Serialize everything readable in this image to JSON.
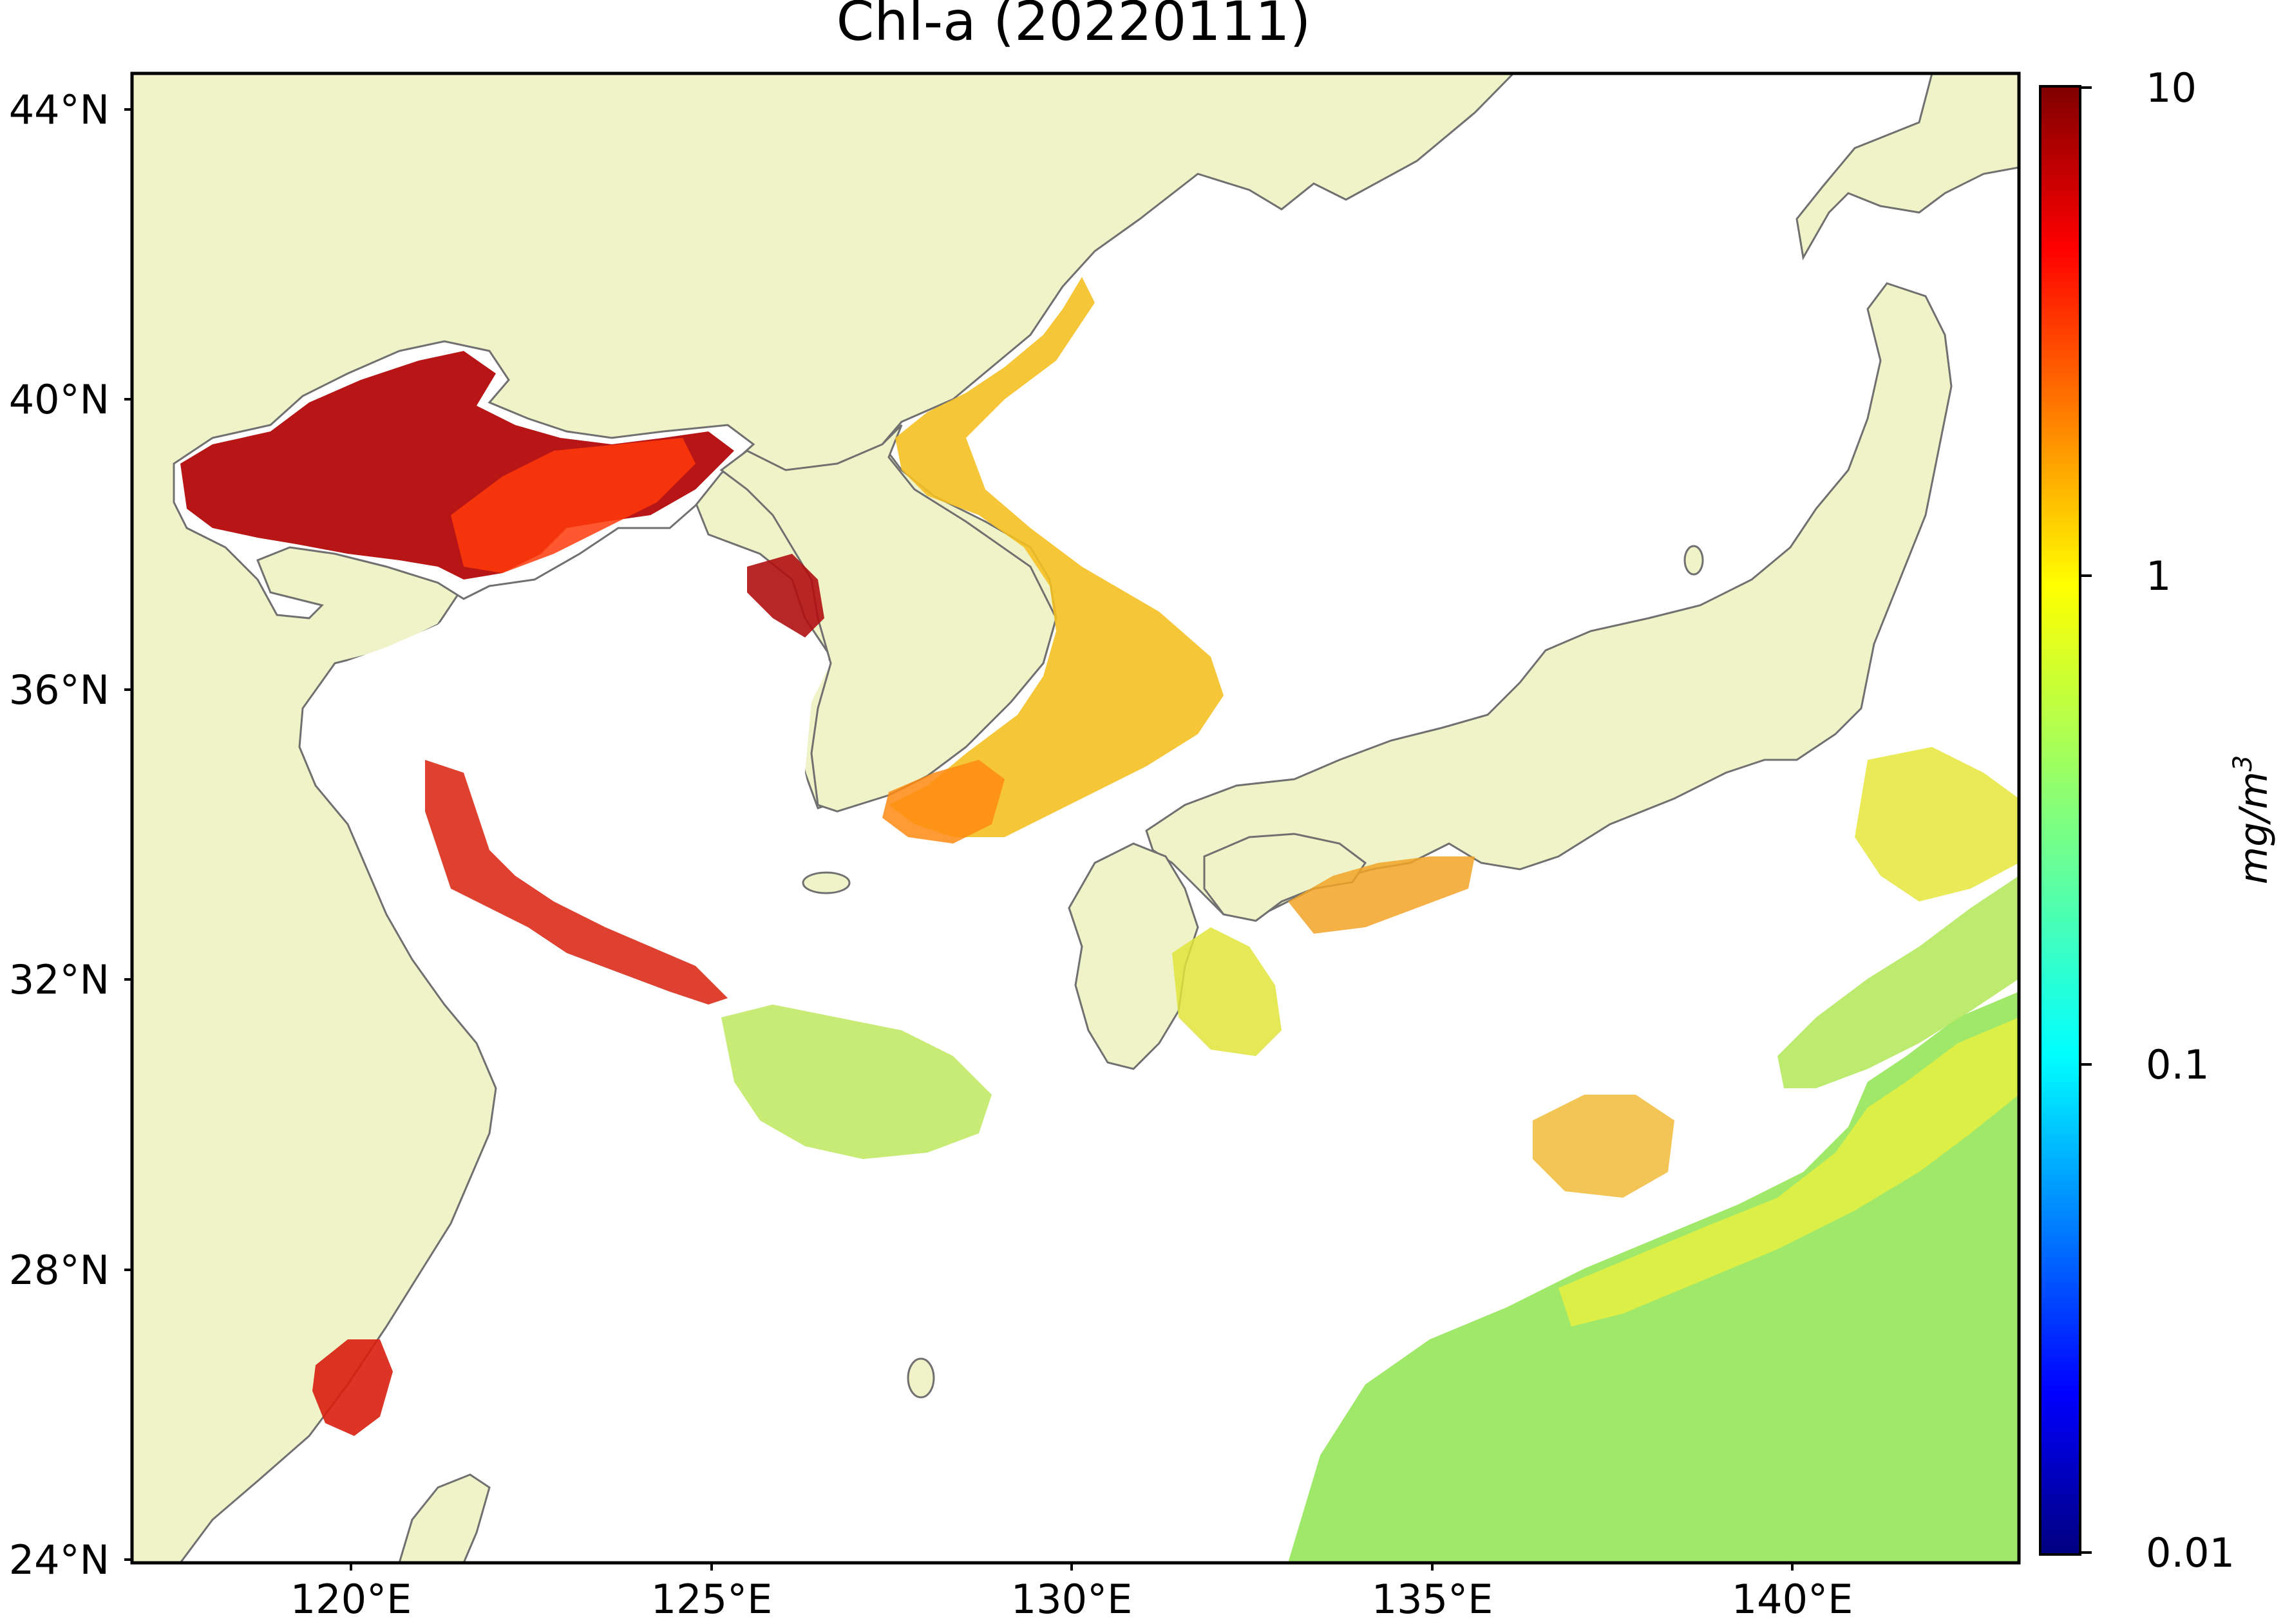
{
  "title": "Chl-a (20220111)",
  "map": {
    "lat_ticks": [
      "44°N",
      "40°N",
      "36°N",
      "32°N",
      "28°N",
      "24°N"
    ],
    "lon_ticks": [
      "120°E",
      "125°E",
      "130°E",
      "135°E",
      "140°E"
    ],
    "lat_range": [
      24,
      44.5
    ],
    "lon_range": [
      116.8,
      143.0
    ],
    "land_color": "#eff3c7",
    "ocean_no_data_color": "#ffffff",
    "coastline_color": "#707070"
  },
  "colorbar": {
    "label": "mg/m",
    "label_sup": "3",
    "scale": "log",
    "range": [
      0.01,
      10
    ],
    "tick_labels": [
      "10",
      "1",
      "0.1",
      "0.01"
    ],
    "colormap": "jet",
    "colors": [
      "#00007f",
      "#0000ff",
      "#007fff",
      "#00ffff",
      "#7fff7f",
      "#ffff00",
      "#ff7f00",
      "#ff0000",
      "#7f0000"
    ]
  }
}
